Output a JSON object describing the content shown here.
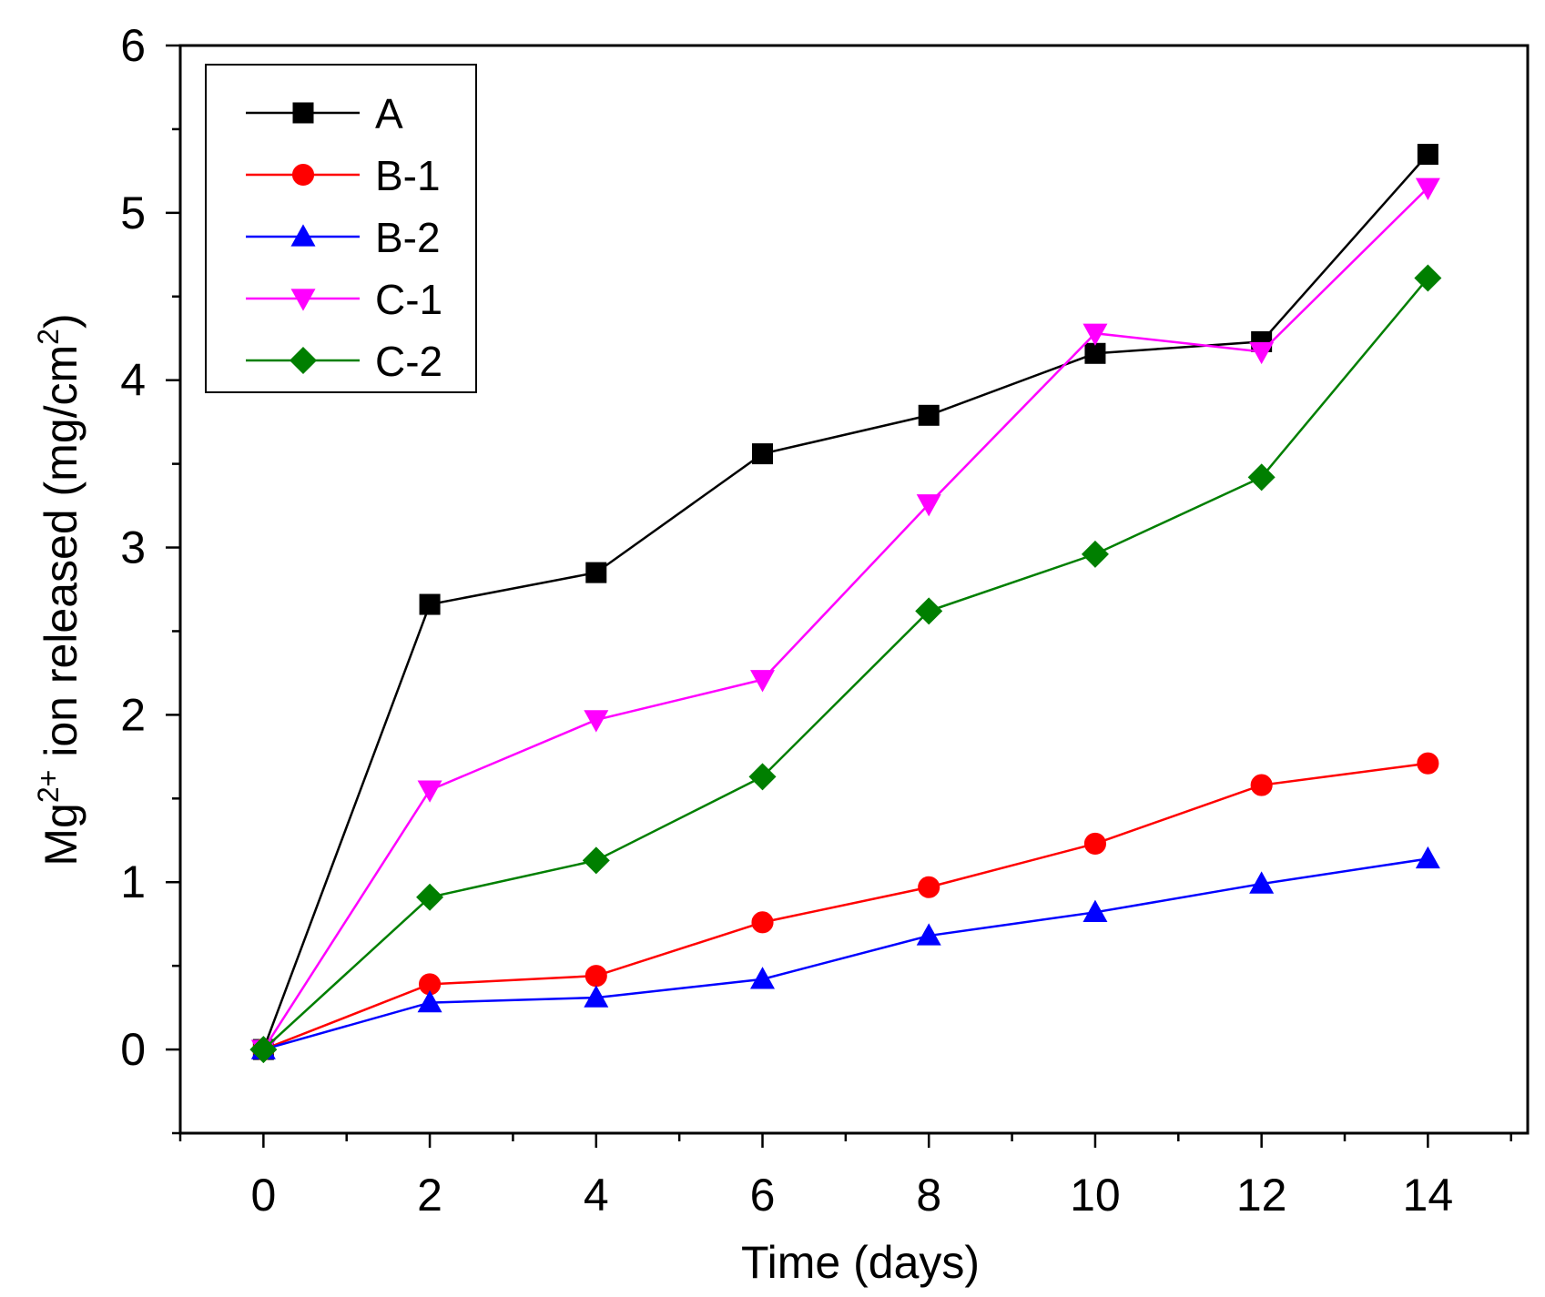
{
  "chart_data": {
    "type": "line",
    "title": "",
    "xlabel": "Time (days)",
    "ylabel": {
      "base": "Mg",
      "superscript": "2+",
      "middle": " ion released (mg/cm",
      "unit_superscript": "2",
      "end": ")"
    },
    "x": [
      0,
      2,
      4,
      6,
      8,
      10,
      12,
      14
    ],
    "xlim": [
      -1,
      15.2
    ],
    "ylim": [
      -0.5,
      6
    ],
    "xticks": [
      0,
      2,
      4,
      6,
      8,
      10,
      12,
      14
    ],
    "yticks": [
      0,
      1,
      2,
      3,
      4,
      5,
      6
    ],
    "legend_position": "top-left",
    "grid": false,
    "series": [
      {
        "name": "A",
        "color": "#000000",
        "marker": "square",
        "values": [
          0,
          2.66,
          2.85,
          3.56,
          3.79,
          4.16,
          4.23,
          5.35
        ]
      },
      {
        "name": "B-1",
        "color": "#ff0000",
        "marker": "circle",
        "values": [
          0,
          0.39,
          0.44,
          0.76,
          0.97,
          1.23,
          1.58,
          1.71
        ]
      },
      {
        "name": "B-2",
        "color": "#0000ff",
        "marker": "triangle-up",
        "values": [
          0,
          0.28,
          0.31,
          0.42,
          0.68,
          0.82,
          0.99,
          1.14
        ]
      },
      {
        "name": "C-1",
        "color": "#ff00ff",
        "marker": "triangle-down",
        "values": [
          0,
          1.55,
          1.97,
          2.21,
          3.26,
          4.28,
          4.17,
          5.15
        ]
      },
      {
        "name": "C-2",
        "color": "#007f00",
        "marker": "diamond",
        "values": [
          0,
          0.91,
          1.13,
          1.63,
          2.62,
          2.96,
          3.42,
          4.61
        ]
      }
    ]
  }
}
